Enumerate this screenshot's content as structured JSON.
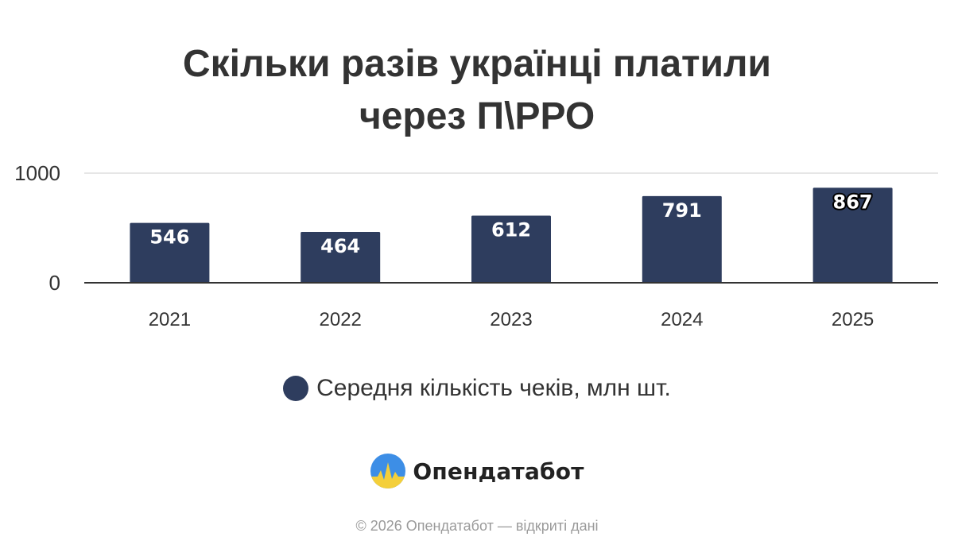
{
  "chart_data": {
    "type": "bar",
    "title_lines": [
      "Скільки разів українці платили",
      "через П\\РРО"
    ],
    "categories": [
      "2021",
      "2022",
      "2023",
      "2024",
      "2025"
    ],
    "series": [
      {
        "name": "Середня кількість чеків, млн шт.",
        "values": [
          546,
          464,
          612,
          791,
          867
        ],
        "labels": [
          "546",
          "464",
          "612",
          "791",
          "867"
        ]
      }
    ],
    "yticks": [
      "0",
      "1000"
    ],
    "ylim": [
      0,
      1000
    ],
    "grid": true,
    "legend": "bottom",
    "colors": {
      "bar": "#2e3d5e",
      "label": "#ffffff",
      "axis": "#333333",
      "grid": "#dddddd"
    }
  },
  "brand": {
    "name": "Опендатабот",
    "logo_icon": "opendatabot-logo-icon"
  },
  "footer": "© 2026 Опендатабот — відкриті дані"
}
